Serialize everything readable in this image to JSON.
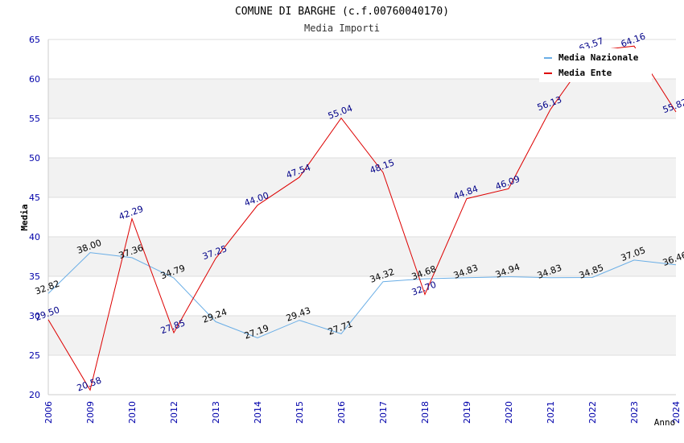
{
  "chart_data": {
    "type": "line",
    "title": "COMUNE DI BARGHE (c.f.00760040170)",
    "subtitle": "Media Importi",
    "xlabel": "Anno",
    "ylabel": "Media",
    "ylim": [
      20,
      65
    ],
    "yticks": [
      20,
      25,
      30,
      35,
      40,
      45,
      50,
      55,
      60,
      65
    ],
    "categories": [
      "2006",
      "2009",
      "2010",
      "2012",
      "2013",
      "2014",
      "2015",
      "2016",
      "2017",
      "2018",
      "2019",
      "2020",
      "2021",
      "2022",
      "2023",
      "2024"
    ],
    "series": [
      {
        "name": "Media Nazionale",
        "color": "#6aaee6",
        "label_color": "#000000",
        "values": [
          32.82,
          38.0,
          37.36,
          34.79,
          29.24,
          27.19,
          29.43,
          27.71,
          34.32,
          34.68,
          34.83,
          34.94,
          34.83,
          34.85,
          37.05,
          36.46
        ]
      },
      {
        "name": "Media Ente",
        "color": "#dd0000",
        "label_color": "#000088",
        "values": [
          29.5,
          20.58,
          42.29,
          27.85,
          37.25,
          44.0,
          47.54,
          55.04,
          48.15,
          32.7,
          44.84,
          46.09,
          56.13,
          63.57,
          64.16,
          55.82
        ]
      }
    ],
    "grid": true,
    "legend_position": "top-right"
  }
}
